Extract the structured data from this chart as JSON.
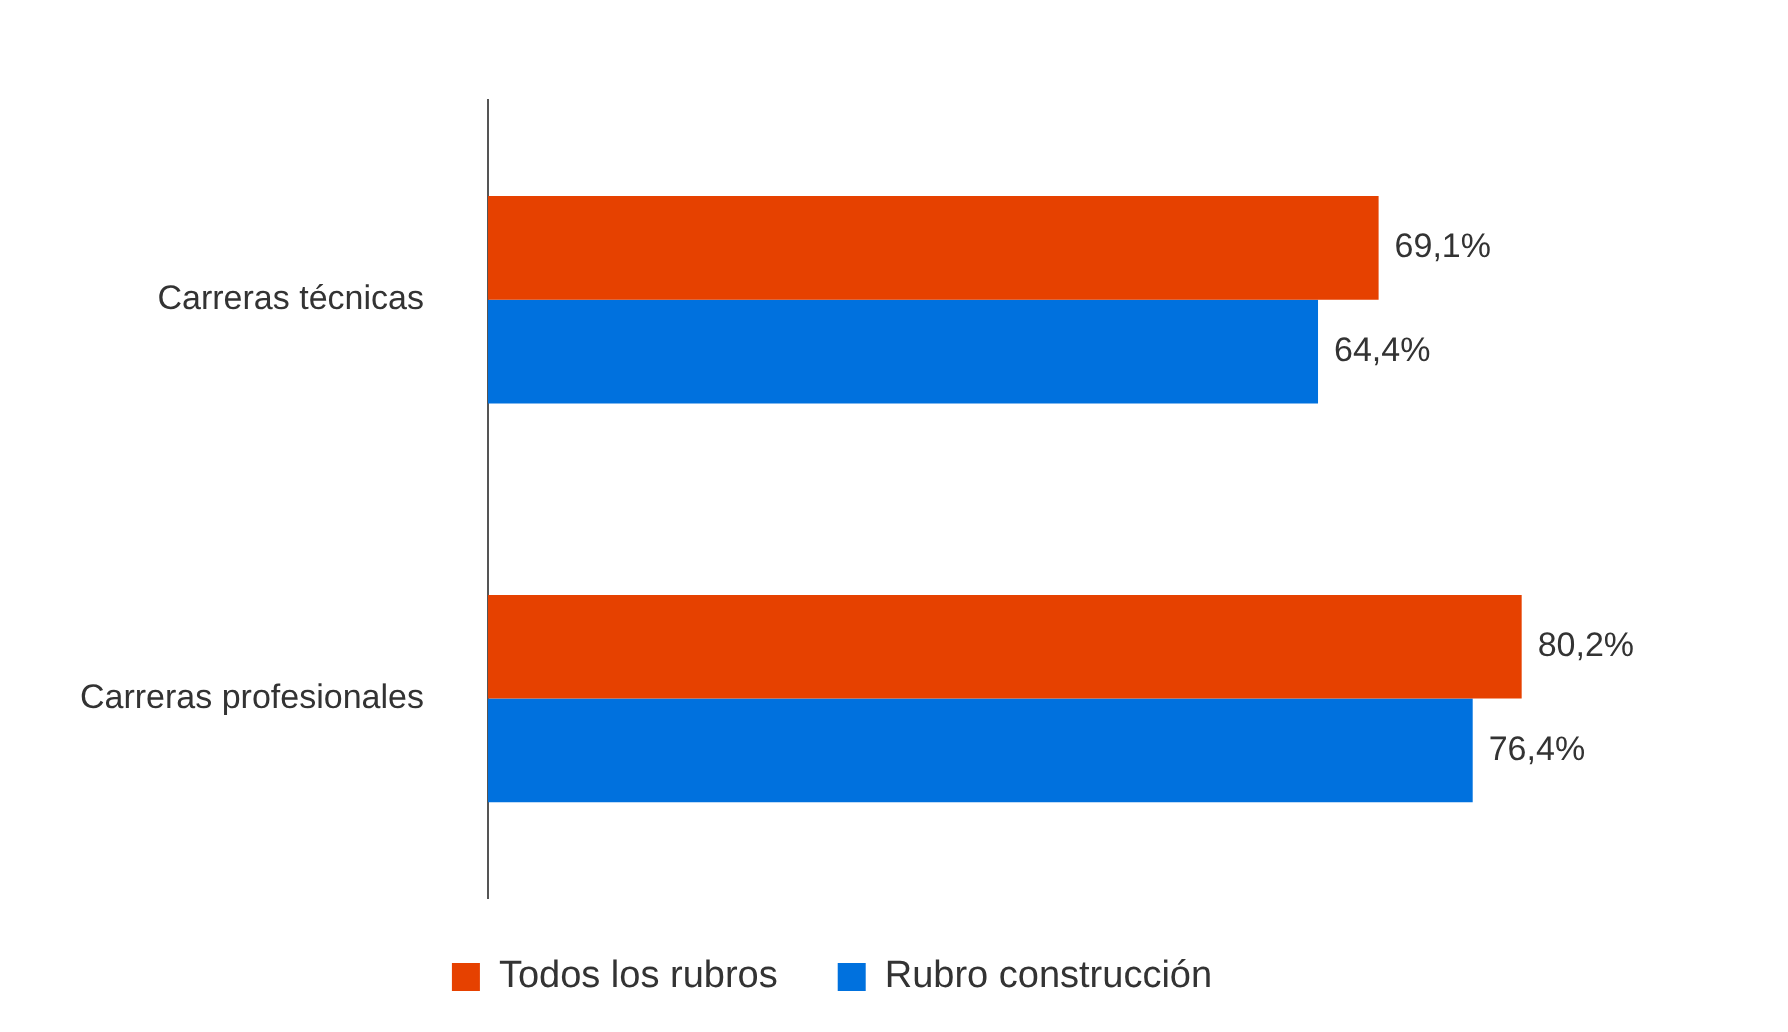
{
  "chart_data": {
    "type": "bar",
    "orientation": "horizontal",
    "categories": [
      "Carreras técnicas",
      "Carreras profesionales"
    ],
    "series": [
      {
        "name": "Todos los rubros",
        "color": "#e64100",
        "values": [
          69.1,
          80.2
        ],
        "value_labels": [
          "69,1%",
          "80,2%"
        ]
      },
      {
        "name": "Rubro construcción",
        "color": "#0071de",
        "values": [
          64.4,
          76.4
        ],
        "value_labels": [
          "64,4%",
          "76,4%"
        ]
      }
    ],
    "legend": "bottom"
  }
}
